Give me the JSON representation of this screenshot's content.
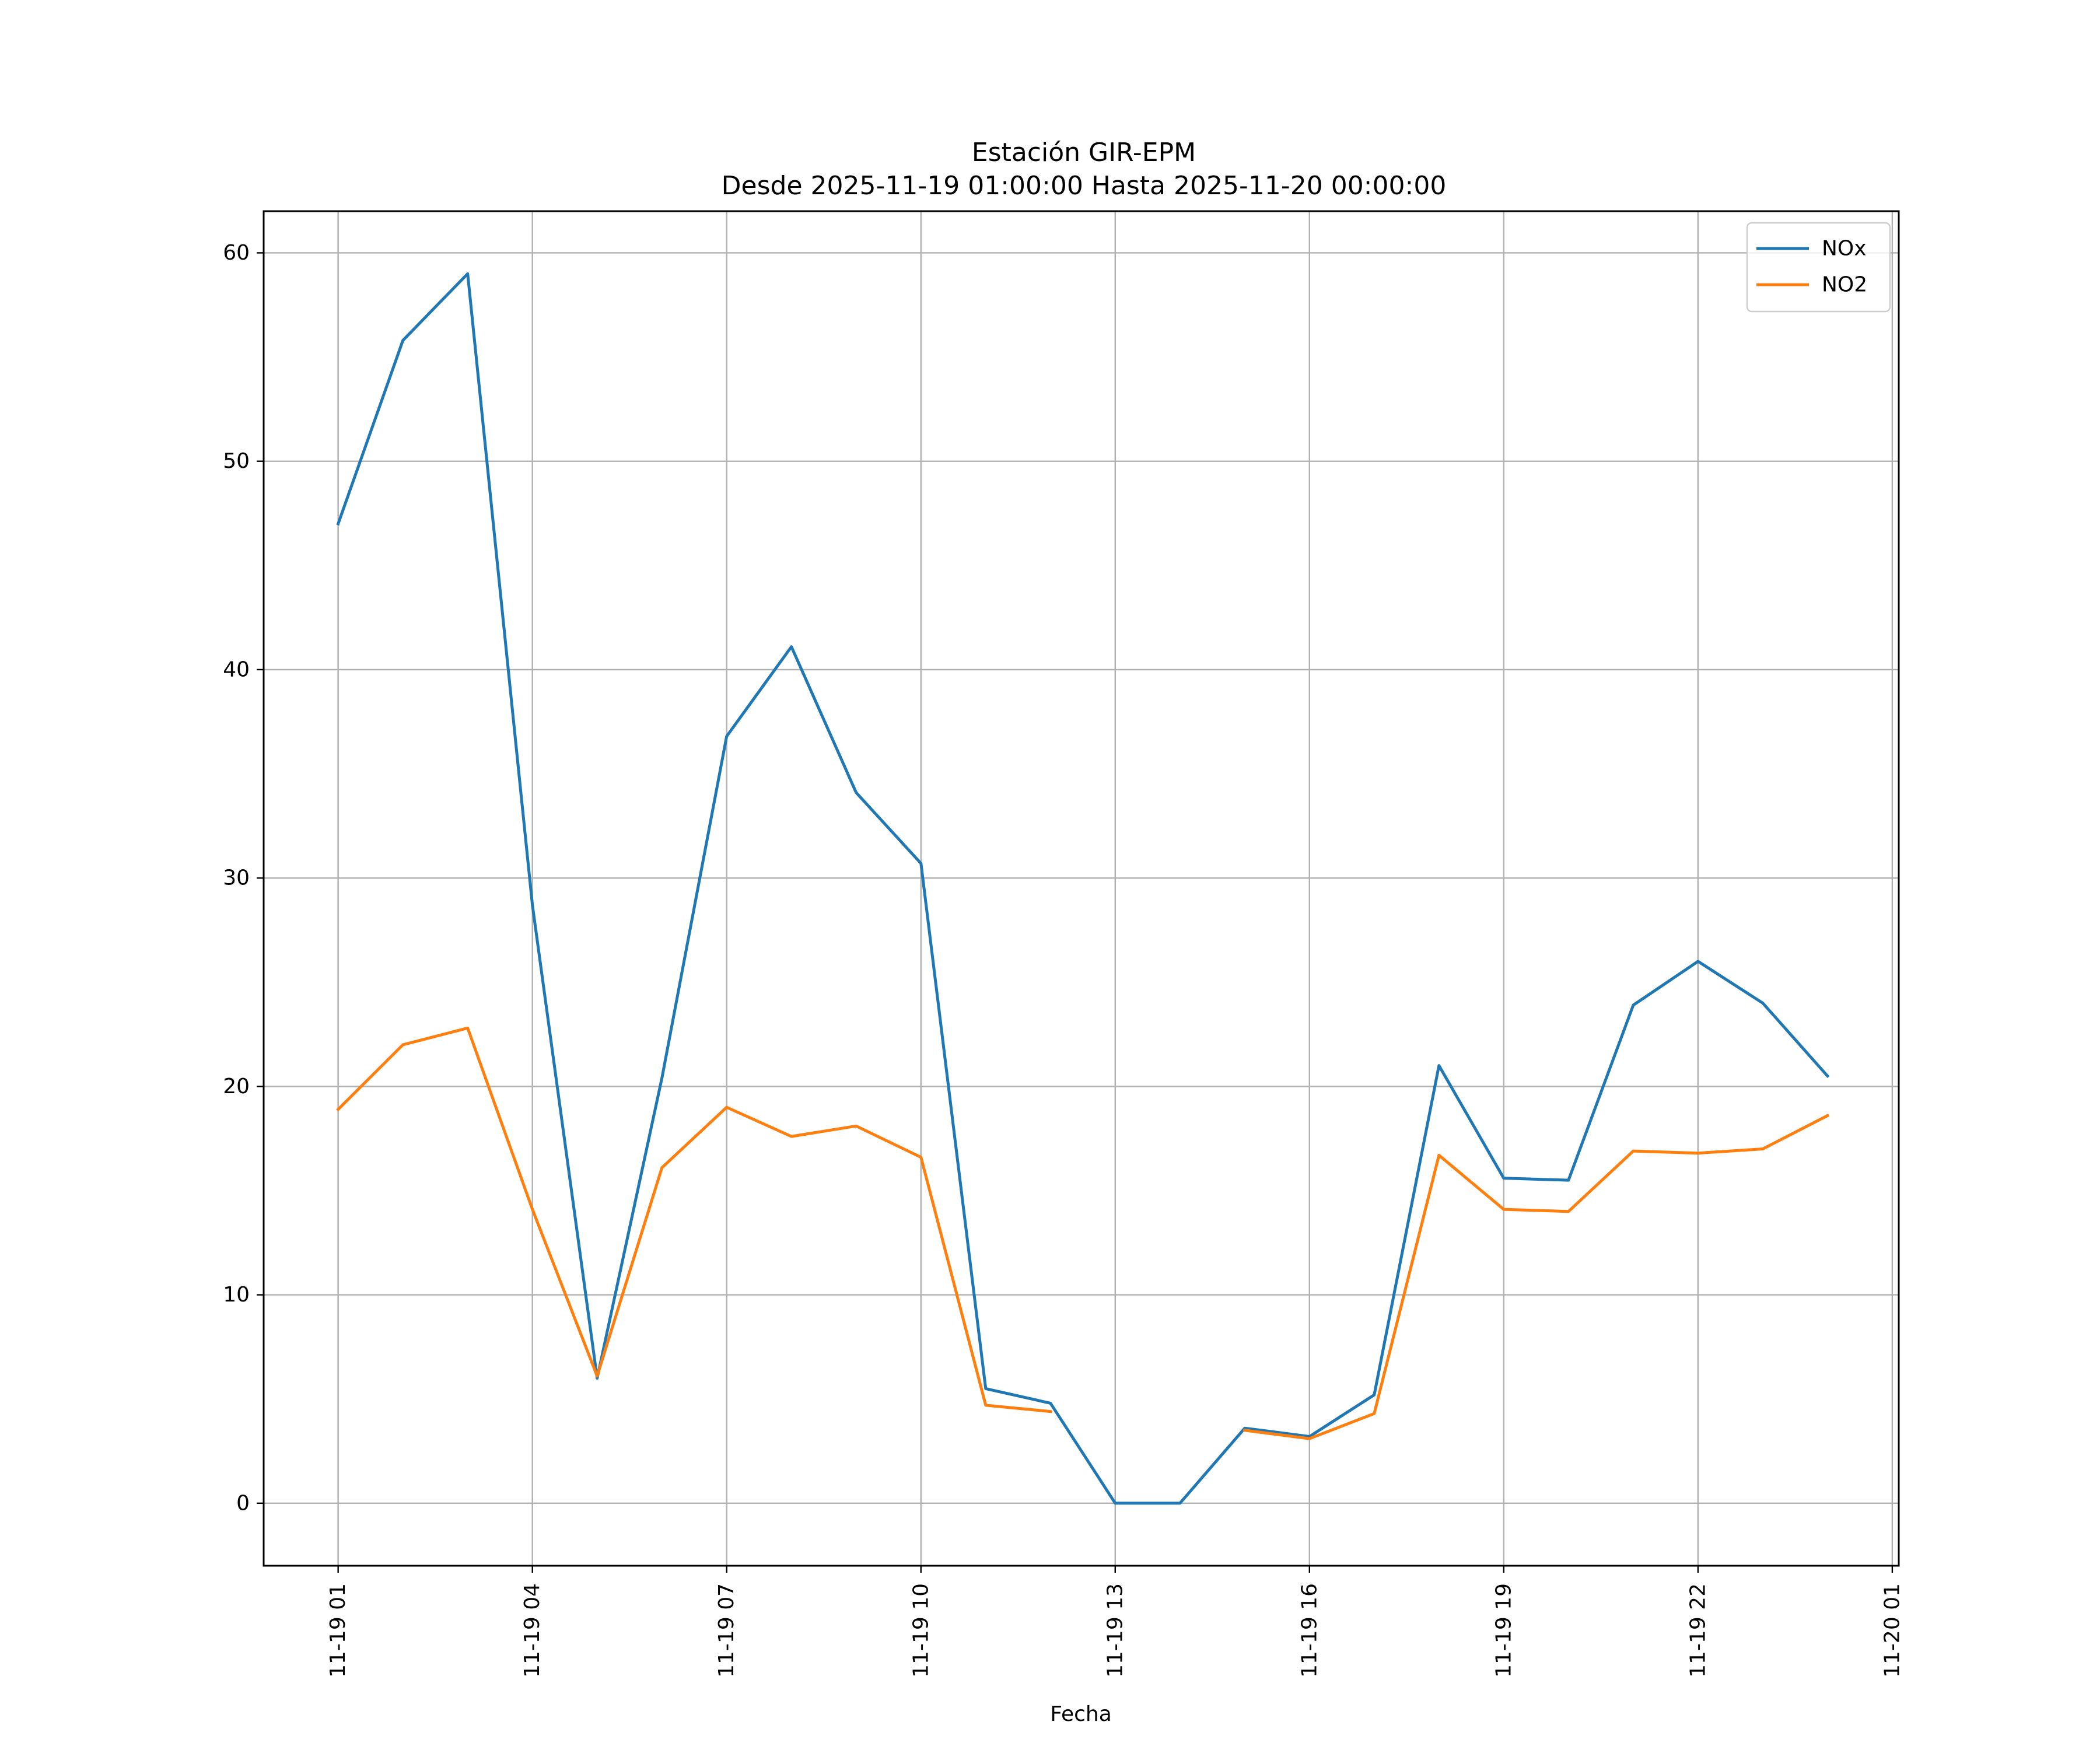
{
  "chart_data": {
    "type": "line",
    "title": "Estación GIR-EPM",
    "subtitle": "Desde 2025-11-19 01:00:00 Hasta 2025-11-20 00:00:00",
    "xlabel": "Fecha",
    "ylabel": "",
    "x_tick_labels": [
      "11-19 01",
      "11-19 04",
      "11-19 07",
      "11-19 10",
      "11-19 13",
      "11-19 16",
      "11-19 19",
      "11-19 22",
      "11-20 01"
    ],
    "x_tick_values": [
      "2025-11-19 01:00",
      "2025-11-19 04:00",
      "2025-11-19 07:00",
      "2025-11-19 10:00",
      "2025-11-19 13:00",
      "2025-11-19 16:00",
      "2025-11-19 19:00",
      "2025-11-19 22:00",
      "2025-11-20 01:00"
    ],
    "y_ticks": [
      0,
      10,
      20,
      30,
      40,
      50,
      60
    ],
    "xlim": [
      "2025-11-18 23:51",
      "2025-11-20 01:06"
    ],
    "ylim": [
      -3,
      62
    ],
    "grid": true,
    "legend_position": "top-right",
    "x": [
      "2025-11-19 01:00",
      "2025-11-19 02:00",
      "2025-11-19 03:00",
      "2025-11-19 04:00",
      "2025-11-19 05:00",
      "2025-11-19 06:00",
      "2025-11-19 07:00",
      "2025-11-19 08:00",
      "2025-11-19 09:00",
      "2025-11-19 10:00",
      "2025-11-19 11:00",
      "2025-11-19 12:00",
      "2025-11-19 13:00",
      "2025-11-19 14:00",
      "2025-11-19 15:00",
      "2025-11-19 16:00",
      "2025-11-19 17:00",
      "2025-11-19 18:00",
      "2025-11-19 19:00",
      "2025-11-19 20:00",
      "2025-11-19 21:00",
      "2025-11-19 22:00",
      "2025-11-19 23:00",
      "2025-11-20 00:00"
    ],
    "series": [
      {
        "name": "NOx",
        "color": "#1f77b4",
        "values": [
          47.0,
          55.8,
          59.0,
          28.7,
          6.0,
          20.4,
          36.8,
          41.1,
          34.1,
          30.7,
          5.5,
          4.8,
          0.0,
          0.0,
          3.6,
          3.2,
          5.2,
          21.0,
          15.6,
          15.5,
          23.9,
          26.0,
          24.0,
          20.5
        ]
      },
      {
        "name": "NO2",
        "color": "#ff7f0e",
        "values": [
          18.9,
          22.0,
          22.8,
          14.1,
          6.1,
          16.1,
          19.0,
          17.6,
          18.1,
          16.6,
          4.7,
          4.4,
          null,
          null,
          3.5,
          3.1,
          4.3,
          16.7,
          14.1,
          14.0,
          16.9,
          16.8,
          17.0,
          18.6
        ]
      }
    ]
  }
}
